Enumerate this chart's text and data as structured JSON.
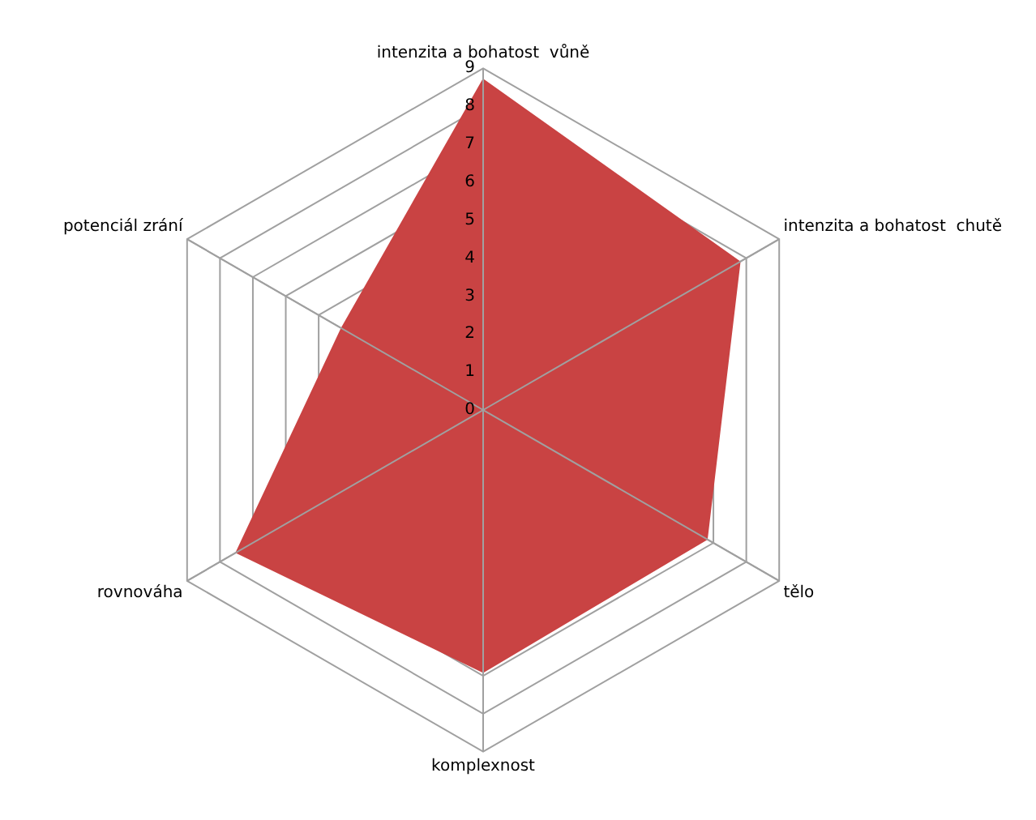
{
  "chart_data": {
    "type": "radar",
    "categories": [
      "intenzita a bohatost  vůně",
      "intenzita a bohatost  chutě",
      "tělo",
      "komplexnost",
      "rovnováha",
      "potenciál zrání"
    ],
    "series": [
      {
        "color": "#c94343",
        "values": [
          8.7,
          7.8,
          6.8,
          6.9,
          7.5,
          4.3
        ]
      }
    ],
    "ylim": [
      0,
      9
    ],
    "yticks": [
      0,
      1,
      2,
      3,
      4,
      5,
      6,
      7,
      8,
      9
    ],
    "grid": true,
    "legend": false,
    "marker": "none"
  }
}
